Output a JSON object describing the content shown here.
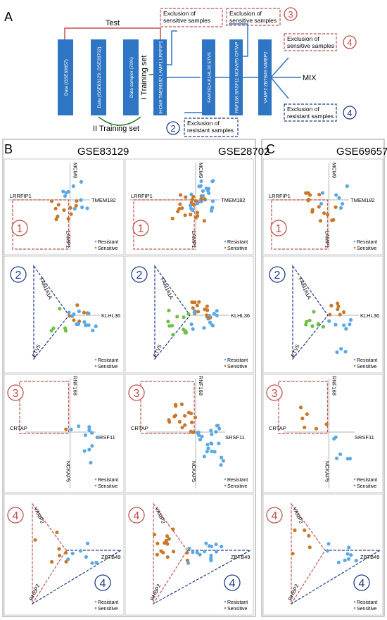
{
  "panels": {
    "a": "A",
    "b": "B",
    "c": "C"
  },
  "flow": {
    "test": "Test",
    "training1": "I Training set",
    "training2": "II Training set",
    "mix": "MIX",
    "bars": [
      "Data (GSE69657)",
      "Data (GSE83129, GSE28702)",
      "Data sampler (70%)",
      "IHCM9 TMEM182 LAMP1 LRRFIP1",
      "FAM161A KLHL36 ETV5",
      "RNF168 SRSF11 NCKAP5 CRTAP",
      "VAMP2 ZBTB49 NIMBP2"
    ],
    "exclusions": [
      {
        "text": [
          "Exclusion of",
          "sensitive samples"
        ],
        "num": "1"
      },
      {
        "text": [
          "Exclusion of",
          "resistant samples"
        ],
        "num": "2"
      },
      {
        "text": [
          "Exclusion of",
          "sensitive samples"
        ],
        "num": "3"
      },
      {
        "text": [
          "Exclusion of",
          "sensitive samples"
        ],
        "num": "4"
      },
      {
        "text": [
          "Exclusion of",
          "resistant samples"
        ],
        "num": "4"
      }
    ]
  },
  "datasets": [
    "GSE83129",
    "GSE28702",
    "GSE69657"
  ],
  "legend": {
    "resistant": "Resistant",
    "sensitive": "Sensitive"
  },
  "rows": [
    {
      "num": "1",
      "axes": {
        "top": "MCM9",
        "left": "LRRFIP1",
        "right": "TMEM182",
        "bottom": "LAMP1"
      }
    },
    {
      "num": "2",
      "axes": {
        "top": "FAM161A",
        "right": "KLHL36",
        "bottom": "ETV5"
      }
    },
    {
      "num": "3",
      "axes": {
        "top": "RNF168",
        "left": "CRTAP",
        "right": "SRSF11",
        "bottom": "NCKAP5"
      }
    },
    {
      "num": "4",
      "axes": {
        "top": "VAMP2",
        "right": "ZBTB49",
        "bottom": "RHBP2"
      }
    }
  ],
  "colors": {
    "bar": "#2e75c3",
    "red": "#c0504d",
    "blue": "#1f3c88",
    "green": "#2f7d32",
    "resistant": "#5aa9e6",
    "sensitive": "#c8782a",
    "sensitiveGreen": "#6fbf44"
  }
}
